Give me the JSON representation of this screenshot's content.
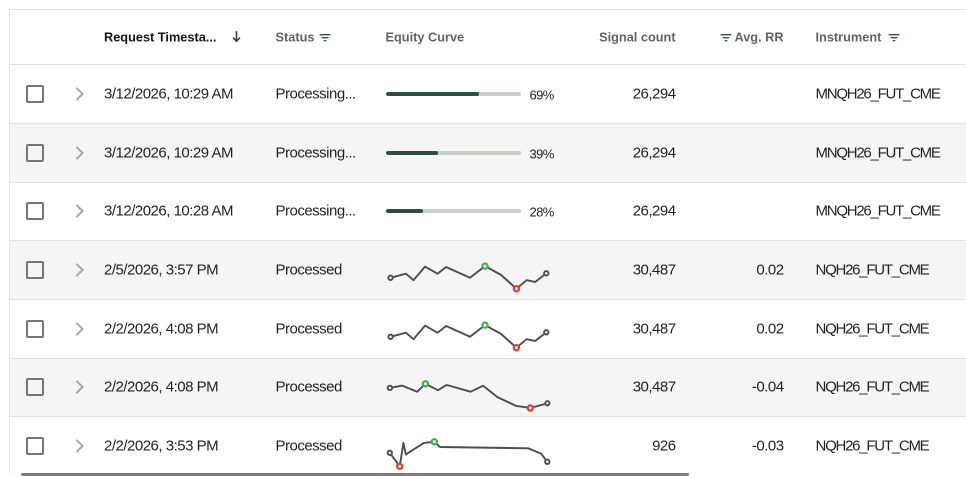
{
  "table": {
    "header": {
      "timestamp_label": "Request Timesta...",
      "timestamp_sort": "desc",
      "status_label": "Status",
      "equity_label": "Equity Curve",
      "signals_label": "Signal count",
      "avg_rr_label": "Avg. RR",
      "instrument_label": "Instrument",
      "filtered_columns": [
        "status",
        "avg_rr",
        "instrument"
      ]
    },
    "rows": [
      {
        "zebra": false,
        "timestamp": "3/12/2026, 10:29 AM",
        "status": "Processing...",
        "progress": 69,
        "progress_label": "69%",
        "signals": "26,294",
        "avg_rr": "",
        "instrument": "MNQH26_FUT_CME"
      },
      {
        "zebra": true,
        "timestamp": "3/12/2026, 10:29 AM",
        "status": "Processing...",
        "progress": 39,
        "progress_label": "39%",
        "signals": "26,294",
        "avg_rr": "",
        "instrument": "MNQH26_FUT_CME"
      },
      {
        "zebra": false,
        "timestamp": "3/12/2026, 10:28 AM",
        "status": "Processing...",
        "progress": 28,
        "progress_label": "28%",
        "signals": "26,294",
        "avg_rr": "",
        "instrument": "MNQH26_FUT_CME"
      },
      {
        "zebra": true,
        "timestamp": "2/5/2026, 3:57 PM",
        "status": "Processed",
        "spark": {
          "points": [
            [
              7.5,
              36.8
            ],
            [
              22.9,
              32.7
            ],
            [
              30.5,
              39.2
            ],
            [
              42,
              25.6
            ],
            [
              54.5,
              32.7
            ],
            [
              63.1,
              26
            ],
            [
              87,
              36.8
            ],
            [
              102,
              25.1
            ],
            [
              118,
              33.9
            ],
            [
              133.4,
              47.7
            ],
            [
              143.6,
              39.2
            ],
            [
              152.2,
              41
            ],
            [
              163.3,
              32.3
            ]
          ],
          "dots": [
            {
              "i": 0,
              "kind": "end"
            },
            {
              "i": 7,
              "kind": "max"
            },
            {
              "i": 9,
              "kind": "min"
            },
            {
              "i": 12,
              "kind": "end"
            }
          ]
        },
        "signals": "30,487",
        "avg_rr": "0.02",
        "instrument": "NQH26_FUT_CME"
      },
      {
        "zebra": false,
        "timestamp": "2/2/2026, 4:08 PM",
        "status": "Processed",
        "spark": {
          "points": [
            [
              7.5,
              36.8
            ],
            [
              22.9,
              32.7
            ],
            [
              30.5,
              39.2
            ],
            [
              42,
              25.6
            ],
            [
              54.5,
              32.7
            ],
            [
              63.1,
              26
            ],
            [
              87,
              36.8
            ],
            [
              102,
              25.1
            ],
            [
              118,
              33.9
            ],
            [
              133.4,
              47.7
            ],
            [
              143.6,
              39.2
            ],
            [
              152.2,
              41
            ],
            [
              163.3,
              32.3
            ]
          ],
          "dots": [
            {
              "i": 0,
              "kind": "end"
            },
            {
              "i": 7,
              "kind": "max"
            },
            {
              "i": 9,
              "kind": "min"
            },
            {
              "i": 12,
              "kind": "end"
            }
          ]
        },
        "signals": "30,487",
        "avg_rr": "0.02",
        "instrument": "NQH26_FUT_CME"
      },
      {
        "zebra": true,
        "timestamp": "2/2/2026, 4:08 PM",
        "status": "Processed",
        "spark": {
          "points": [
            [
              6.9,
              28.9
            ],
            [
              19.2,
              26.6
            ],
            [
              34.2,
              32.7
            ],
            [
              42.4,
              24.8
            ],
            [
              54.9,
              31.2
            ],
            [
              63.7,
              26
            ],
            [
              87.6,
              32.7
            ],
            [
              100.1,
              26.8
            ],
            [
              114.4,
              38.1
            ],
            [
              133.4,
              47
            ],
            [
              147.3,
              49
            ],
            [
              164.4,
              44.3
            ]
          ],
          "dots": [
            {
              "i": 0,
              "kind": "end"
            },
            {
              "i": 3,
              "kind": "max"
            },
            {
              "i": 10,
              "kind": "min"
            },
            {
              "i": 11,
              "kind": "end"
            }
          ]
        },
        "signals": "30,487",
        "avg_rr": "-0.04",
        "instrument": "NQH26_FUT_CME"
      },
      {
        "zebra": false,
        "timestamp": "2/2/2026, 3:53 PM",
        "status": "Processed",
        "spark": {
          "points": [
            [
              6.8,
              35.8
            ],
            [
              16.7,
              49.4
            ],
            [
              20.4,
              25.9
            ],
            [
              22.8,
              37.4
            ],
            [
              40.8,
              25.9
            ],
            [
              51.3,
              24.8
            ],
            [
              57,
              30
            ],
            [
              145.2,
              31.3
            ],
            [
              158.3,
              36.8
            ],
            [
              164.3,
              44.8
            ]
          ],
          "dots": [
            {
              "i": 0,
              "kind": "end"
            },
            {
              "i": 1,
              "kind": "min"
            },
            {
              "i": 5,
              "kind": "max"
            },
            {
              "i": 9,
              "kind": "end"
            }
          ]
        },
        "signals": "926",
        "avg_rr": "-0.03",
        "instrument": "NQH26_FUT_CME"
      }
    ]
  },
  "colors": {
    "progress_fill": "#2e4d3b",
    "progress_track": "#c6cfc7",
    "spark_line": "#4d4d4d",
    "spark_end_dot": "#4d4d4d",
    "spark_max_dot": "#3fb14c",
    "spark_min_dot": "#e53935",
    "filter_icon": "#35503f",
    "sort_icon": "#3a3f44",
    "chevron": "#a8a8a8",
    "zebra_row": "#f5f5f5",
    "row_border": "#e2e2e2"
  },
  "scrollbar": {
    "orientation": "horizontal"
  }
}
